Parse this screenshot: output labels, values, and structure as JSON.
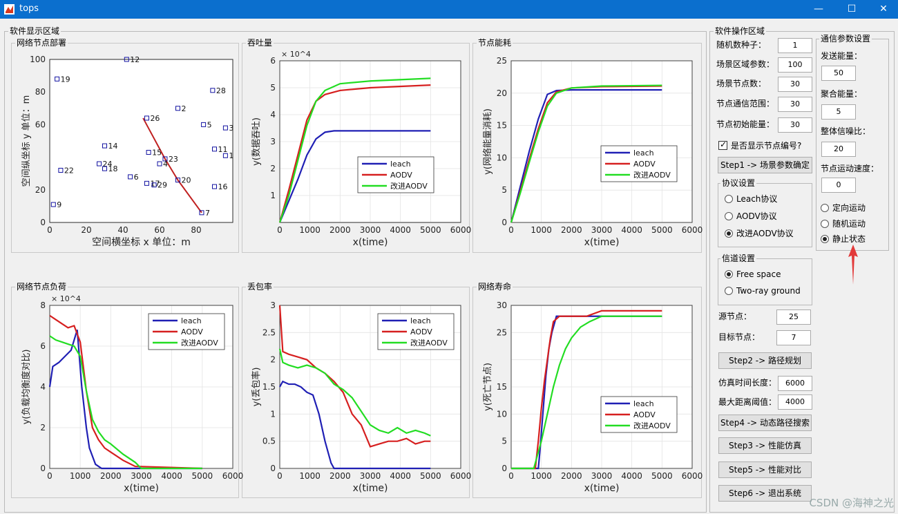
{
  "window": {
    "title": "tops",
    "minimize": "—",
    "maximize": "☐",
    "close": "✕"
  },
  "left_panel": {
    "title": "软件显示区域"
  },
  "right_panel": {
    "title": "软件操作区域",
    "seed_label": "随机数种子：",
    "seed_value": "1",
    "area_label": "场景区域参数：",
    "area_value": "100",
    "nodes_label": "场景节点数：",
    "nodes_value": "30",
    "range_label": "节点通信范围：",
    "range_value": "30",
    "energy_label": "节点初始能量：",
    "energy_value": "30",
    "show_ids_label": "是否显示节点编号?",
    "show_ids_checked": true,
    "step1_label": "Step1 -> 场景参数确定",
    "protocol_group": "协议设置",
    "protocols": [
      {
        "label": "Leach协议",
        "selected": false
      },
      {
        "label": "AODV协议",
        "selected": false
      },
      {
        "label": "改进AODV协议",
        "selected": true
      }
    ],
    "channel_group": "信道设置",
    "channels": [
      {
        "label": "Free space",
        "selected": true
      },
      {
        "label": "Two-ray ground",
        "selected": false
      }
    ],
    "src_label": "源节点：",
    "src_value": "25",
    "dst_label": "目标节点：",
    "dst_value": "7",
    "step2_label": "Step2 -> 路径规划",
    "simtime_label": "仿真时间长度：",
    "simtime_value": "6000",
    "maxrange_label": "最大距离阈值：",
    "maxrange_value": "4000",
    "step4_label": "Step4 -> 动态路径搜索",
    "step3_label": "Step3 -> 性能仿真",
    "step5_label": "Step5 -> 性能对比",
    "step6_label": "Step6 -> 退出系统",
    "comm_group": "通信参数设置",
    "send_label": "发送能量：",
    "send_value": "50",
    "agg_label": "聚合能量：",
    "agg_value": "5",
    "snr_label": "整体信噪比：",
    "snr_value": "20",
    "speed_label": "节点运动速度：",
    "speed_value": "0",
    "motions": [
      {
        "label": "定向运动",
        "selected": false
      },
      {
        "label": "随机运动",
        "selected": false
      },
      {
        "label": "静止状态",
        "selected": true
      }
    ]
  },
  "colors": {
    "leach": "#1f1fb4",
    "aodv": "#d61f1f",
    "improved": "#22dd22",
    "route": "#c02020",
    "arrow": "#e23a3a"
  },
  "watermark": "CSDN @海神之光",
  "chart_data": [
    {
      "id": "deployment",
      "panel_title": "网络节点部署",
      "type": "scatter",
      "xlabel": "空间横坐标 x  单位：m",
      "ylabel": "空间纵坐标 y  单位：m",
      "xlim": [
        0,
        100
      ],
      "ylim": [
        0,
        100
      ],
      "xticks": [
        0,
        20,
        40,
        60,
        80
      ],
      "xtick_labels": [
        "0",
        "20",
        "40",
        "60",
        "80"
      ],
      "yticks": [
        0,
        20,
        40,
        60,
        80,
        100
      ],
      "ytick_labels": [
        "0",
        "20",
        "",
        "60",
        "80",
        "100"
      ],
      "points": [
        {
          "id": "12",
          "x": 42,
          "y": 100
        },
        {
          "id": "19",
          "x": 4,
          "y": 88
        },
        {
          "id": "28",
          "x": 89,
          "y": 81
        },
        {
          "id": "2",
          "x": 70,
          "y": 70
        },
        {
          "id": "26",
          "x": 53,
          "y": 64
        },
        {
          "id": "5",
          "x": 84,
          "y": 60
        },
        {
          "id": "3",
          "x": 96,
          "y": 58
        },
        {
          "id": "14",
          "x": 30,
          "y": 47
        },
        {
          "id": "11",
          "x": 90,
          "y": 45
        },
        {
          "id": "1",
          "x": 96,
          "y": 41
        },
        {
          "id": "15",
          "x": 54,
          "y": 43
        },
        {
          "id": "23",
          "x": 63,
          "y": 39
        },
        {
          "id": "4",
          "x": 60,
          "y": 36
        },
        {
          "id": "24",
          "x": 27,
          "y": 36
        },
        {
          "id": "18",
          "x": 30,
          "y": 33
        },
        {
          "id": "22",
          "x": 6,
          "y": 32
        },
        {
          "id": "6",
          "x": 44,
          "y": 28
        },
        {
          "id": "20",
          "x": 70,
          "y": 26
        },
        {
          "id": "17",
          "x": 53,
          "y": 24
        },
        {
          "id": "29",
          "x": 57,
          "y": 23
        },
        {
          "id": "16",
          "x": 90,
          "y": 22
        },
        {
          "id": "9",
          "x": 2,
          "y": 11
        },
        {
          "id": "7",
          "x": 83,
          "y": 6
        }
      ],
      "route": [
        [
          51,
          64
        ],
        [
          63,
          39
        ],
        [
          70,
          26
        ],
        [
          83,
          6
        ]
      ]
    },
    {
      "id": "throughput",
      "panel_title": "吞吐量",
      "type": "line",
      "xlabel": "x(time)",
      "ylabel": "y(数据吞吐)",
      "multiplier": "× 10^4",
      "xlim": [
        0,
        6000
      ],
      "ylim": [
        0,
        6
      ],
      "xticks": [
        0,
        1000,
        2000,
        3000,
        4000,
        5000,
        6000
      ],
      "xtick_labels": [
        "0",
        "1000",
        "2000",
        "3000",
        "4000",
        "5000",
        "6000"
      ],
      "yticks": [
        1,
        2,
        3,
        4,
        5,
        6
      ],
      "ytick_labels": [
        "1",
        "2",
        "3",
        "4",
        "5",
        "6"
      ],
      "legend": [
        "leach",
        "AODV",
        "改进AODV"
      ],
      "legend_position": "bottom-right",
      "series": [
        {
          "name": "leach",
          "color_key": "leach",
          "x": [
            0,
            300,
            600,
            900,
            1200,
            1500,
            1800,
            2500,
            5000
          ],
          "y": [
            0,
            0.8,
            1.6,
            2.5,
            3.1,
            3.35,
            3.4,
            3.4,
            3.4
          ]
        },
        {
          "name": "AODV",
          "color_key": "aodv",
          "x": [
            0,
            300,
            600,
            900,
            1200,
            1500,
            2000,
            3000,
            5000
          ],
          "y": [
            0,
            1.2,
            2.5,
            3.8,
            4.5,
            4.75,
            4.9,
            5.0,
            5.1
          ]
        },
        {
          "name": "改进AODV",
          "color_key": "improved",
          "x": [
            0,
            300,
            600,
            900,
            1200,
            1500,
            2000,
            3000,
            5000
          ],
          "y": [
            0,
            1.0,
            2.3,
            3.6,
            4.5,
            4.9,
            5.15,
            5.25,
            5.35
          ]
        }
      ]
    },
    {
      "id": "energy",
      "panel_title": "节点能耗",
      "type": "line",
      "xlabel": "x(time)",
      "ylabel": "y(网络能量消耗)",
      "xlim": [
        0,
        6000
      ],
      "ylim": [
        0,
        25
      ],
      "xticks": [
        0,
        1000,
        2000,
        3000,
        4000,
        5000,
        6000
      ],
      "xtick_labels": [
        "0",
        "1000",
        "2000",
        "3000",
        "4000",
        "5000",
        "6000"
      ],
      "yticks": [
        0,
        5,
        10,
        15,
        20,
        25
      ],
      "ytick_labels": [
        "0",
        "5",
        "10",
        "15",
        "20",
        "25"
      ],
      "legend": [
        "leach",
        "AODV",
        "改进AODV"
      ],
      "legend_position": "center-right",
      "series": [
        {
          "name": "leach",
          "color_key": "leach",
          "x": [
            0,
            300,
            600,
            900,
            1200,
            1500,
            2000,
            5000
          ],
          "y": [
            0,
            5.5,
            11,
            16,
            19.8,
            20.4,
            20.5,
            20.5
          ]
        },
        {
          "name": "AODV",
          "color_key": "aodv",
          "x": [
            0,
            300,
            600,
            900,
            1200,
            1500,
            2000,
            3000,
            5000
          ],
          "y": [
            0,
            4.8,
            9.8,
            14.5,
            18.5,
            20.2,
            20.8,
            21,
            21.1
          ]
        },
        {
          "name": "改进AODV",
          "color_key": "improved",
          "x": [
            0,
            300,
            600,
            900,
            1200,
            1500,
            2000,
            3000,
            5000
          ],
          "y": [
            0,
            4.5,
            9.3,
            14,
            18,
            20,
            20.8,
            21.1,
            21.2
          ]
        }
      ]
    },
    {
      "id": "load",
      "panel_title": "网络节点负荷",
      "type": "line",
      "xlabel": "x(time)",
      "ylabel": "y(负载均衡度对比)",
      "multiplier": "× 10^4",
      "xlim": [
        0,
        6000
      ],
      "ylim": [
        0,
        8
      ],
      "xticks": [
        0,
        1000,
        2000,
        3000,
        4000,
        5000,
        6000
      ],
      "xtick_labels": [
        "0",
        "1000",
        "2000",
        "3000",
        "4000",
        "5000",
        "6000"
      ],
      "yticks": [
        0,
        2,
        4,
        6,
        8
      ],
      "ytick_labels": [
        "0",
        "2",
        "4",
        "6",
        "8"
      ],
      "legend": [
        "leach",
        "AODV",
        "改进AODV"
      ],
      "legend_position": "top-right",
      "series": [
        {
          "name": "leach",
          "color_key": "leach",
          "x": [
            0,
            100,
            300,
            500,
            700,
            900,
            1050,
            1200,
            1300,
            1500,
            1700,
            5000
          ],
          "y": [
            4,
            5,
            5.2,
            5.5,
            5.8,
            6.8,
            4,
            2,
            1,
            0.2,
            0,
            0
          ]
        },
        {
          "name": "AODV",
          "color_key": "aodv",
          "x": [
            0,
            200,
            400,
            600,
            800,
            1000,
            1200,
            1400,
            1600,
            1800,
            2000,
            2400,
            2800,
            5000
          ],
          "y": [
            7.5,
            7.3,
            7.1,
            6.9,
            7.0,
            6.2,
            3.8,
            2.0,
            1.4,
            1.0,
            0.8,
            0.4,
            0.1,
            0
          ]
        },
        {
          "name": "改进AODV",
          "color_key": "improved",
          "x": [
            0,
            200,
            400,
            600,
            800,
            1000,
            1200,
            1400,
            1600,
            1800,
            2000,
            2400,
            2800,
            3000,
            5000
          ],
          "y": [
            6.5,
            6.3,
            6.2,
            6.1,
            6.0,
            5.5,
            3.8,
            2.4,
            1.8,
            1.4,
            1.2,
            0.7,
            0.3,
            0,
            0
          ]
        }
      ]
    },
    {
      "id": "loss",
      "panel_title": "丢包率",
      "type": "line",
      "xlabel": "x(time)",
      "ylabel": "y(丢包率)",
      "xlim": [
        0,
        6000
      ],
      "ylim": [
        0,
        3
      ],
      "xticks": [
        0,
        1000,
        2000,
        3000,
        4000,
        5000,
        6000
      ],
      "xtick_labels": [
        "0",
        "1000",
        "2000",
        "3000",
        "4000",
        "5000",
        "6000"
      ],
      "yticks": [
        0,
        0.5,
        1,
        1.5,
        2,
        2.5,
        3
      ],
      "ytick_labels": [
        "0",
        "0.5",
        "1",
        "1.5",
        "2",
        "2.5",
        "3"
      ],
      "legend": [
        "leach",
        "AODV",
        "改进AODV"
      ],
      "legend_position": "top-right",
      "series": [
        {
          "name": "leach",
          "color_key": "leach",
          "x": [
            0,
            100,
            300,
            500,
            700,
            900,
            1100,
            1300,
            1500,
            1700,
            1800,
            2000,
            5000
          ],
          "y": [
            1.5,
            1.6,
            1.55,
            1.55,
            1.5,
            1.4,
            1.35,
            1.0,
            0.5,
            0.1,
            0,
            0,
            0
          ]
        },
        {
          "name": "AODV",
          "color_key": "aodv",
          "x": [
            0,
            100,
            300,
            600,
            900,
            1200,
            1500,
            1800,
            2100,
            2400,
            2700,
            3000,
            3300,
            3600,
            3900,
            4200,
            4500,
            4800,
            5000
          ],
          "y": [
            3,
            2.15,
            2.1,
            2.05,
            2.0,
            1.85,
            1.75,
            1.6,
            1.4,
            1.0,
            0.8,
            0.4,
            0.45,
            0.5,
            0.5,
            0.55,
            0.45,
            0.5,
            0.5
          ]
        },
        {
          "name": "改进AODV",
          "color_key": "improved",
          "x": [
            0,
            100,
            300,
            600,
            900,
            1200,
            1500,
            1800,
            2100,
            2400,
            2700,
            3000,
            3300,
            3600,
            3900,
            4200,
            4500,
            4800,
            5000
          ],
          "y": [
            2.2,
            1.95,
            1.9,
            1.85,
            1.9,
            1.85,
            1.75,
            1.55,
            1.45,
            1.3,
            1.05,
            0.8,
            0.7,
            0.65,
            0.75,
            0.65,
            0.7,
            0.65,
            0.6
          ]
        }
      ]
    },
    {
      "id": "lifetime",
      "panel_title": "网络寿命",
      "type": "line",
      "xlabel": "x(time)",
      "ylabel": "y(死亡节点)",
      "xlim": [
        0,
        6000
      ],
      "ylim": [
        0,
        30
      ],
      "xticks": [
        0,
        1000,
        2000,
        3000,
        4000,
        5000,
        6000
      ],
      "xtick_labels": [
        "0",
        "1000",
        "2000",
        "3000",
        "4000",
        "5000",
        "6000"
      ],
      "yticks": [
        0,
        5,
        10,
        15,
        20,
        25,
        30
      ],
      "ytick_labels": [
        "0",
        "5",
        "10",
        "15",
        "",
        "25",
        "30"
      ],
      "legend": [
        "leach",
        "AODV",
        "改进AODV"
      ],
      "legend_position": "bottom-right",
      "series": [
        {
          "name": "leach",
          "color_key": "leach",
          "x": [
            0,
            900,
            950,
            1050,
            1150,
            1250,
            1350,
            1450,
            1500,
            1700,
            5000
          ],
          "y": [
            0,
            0,
            3,
            10,
            17,
            22,
            25,
            27,
            28,
            28,
            28
          ]
        },
        {
          "name": "AODV",
          "color_key": "aodv",
          "x": [
            0,
            800,
            900,
            1000,
            1100,
            1200,
            1300,
            1400,
            1600,
            2000,
            2500,
            3000,
            5000
          ],
          "y": [
            0,
            0,
            5,
            11,
            16,
            20,
            24,
            27,
            28,
            28,
            28,
            29,
            29
          ]
        },
        {
          "name": "改进AODV",
          "color_key": "improved",
          "x": [
            0,
            750,
            850,
            1000,
            1200,
            1400,
            1600,
            1800,
            2000,
            2300,
            2600,
            3000,
            5000
          ],
          "y": [
            0,
            0,
            2,
            5,
            10,
            15,
            19,
            22,
            24,
            26,
            27,
            28,
            28
          ]
        }
      ]
    }
  ]
}
